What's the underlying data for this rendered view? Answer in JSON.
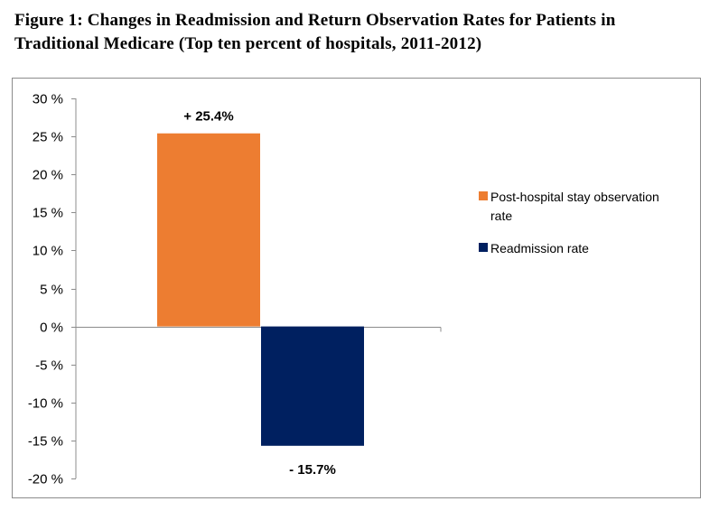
{
  "title_lines": [
    "Figure 1: Changes in Readmission and Return Observation Rates for Patients in",
    "Traditional Medicare (Top ten percent of hospitals, 2011-2012)"
  ],
  "chart_data": {
    "type": "bar",
    "title": "Figure 1: Changes in Readmission and Return Observation Rates for Patients in Traditional Medicare (Top ten percent of hospitals, 2011-2012)",
    "xlabel": "",
    "ylabel": "",
    "ylim": [
      -20,
      30
    ],
    "yticks": [
      30,
      25,
      20,
      15,
      10,
      5,
      0,
      -5,
      -10,
      -15,
      -20
    ],
    "ytick_labels": [
      "30 %",
      "25 %",
      "20 %",
      "15 %",
      "10 %",
      "5 %",
      "0 %",
      "-5 %",
      "-10 %",
      "-15 %",
      "-20 %"
    ],
    "grid": false,
    "legend_position": "right",
    "series": [
      {
        "name": "Post-hospital stay observation rate",
        "value": 25.4,
        "label": "+ 25.4%",
        "color": "#ED7D31",
        "legend_lines": [
          "Post-hospital stay observation",
          "rate"
        ]
      },
      {
        "name": "Readmission rate",
        "value": -15.7,
        "label": "- 15.7%",
        "color": "#002060",
        "legend_lines": [
          "Readmission rate"
        ]
      }
    ]
  }
}
